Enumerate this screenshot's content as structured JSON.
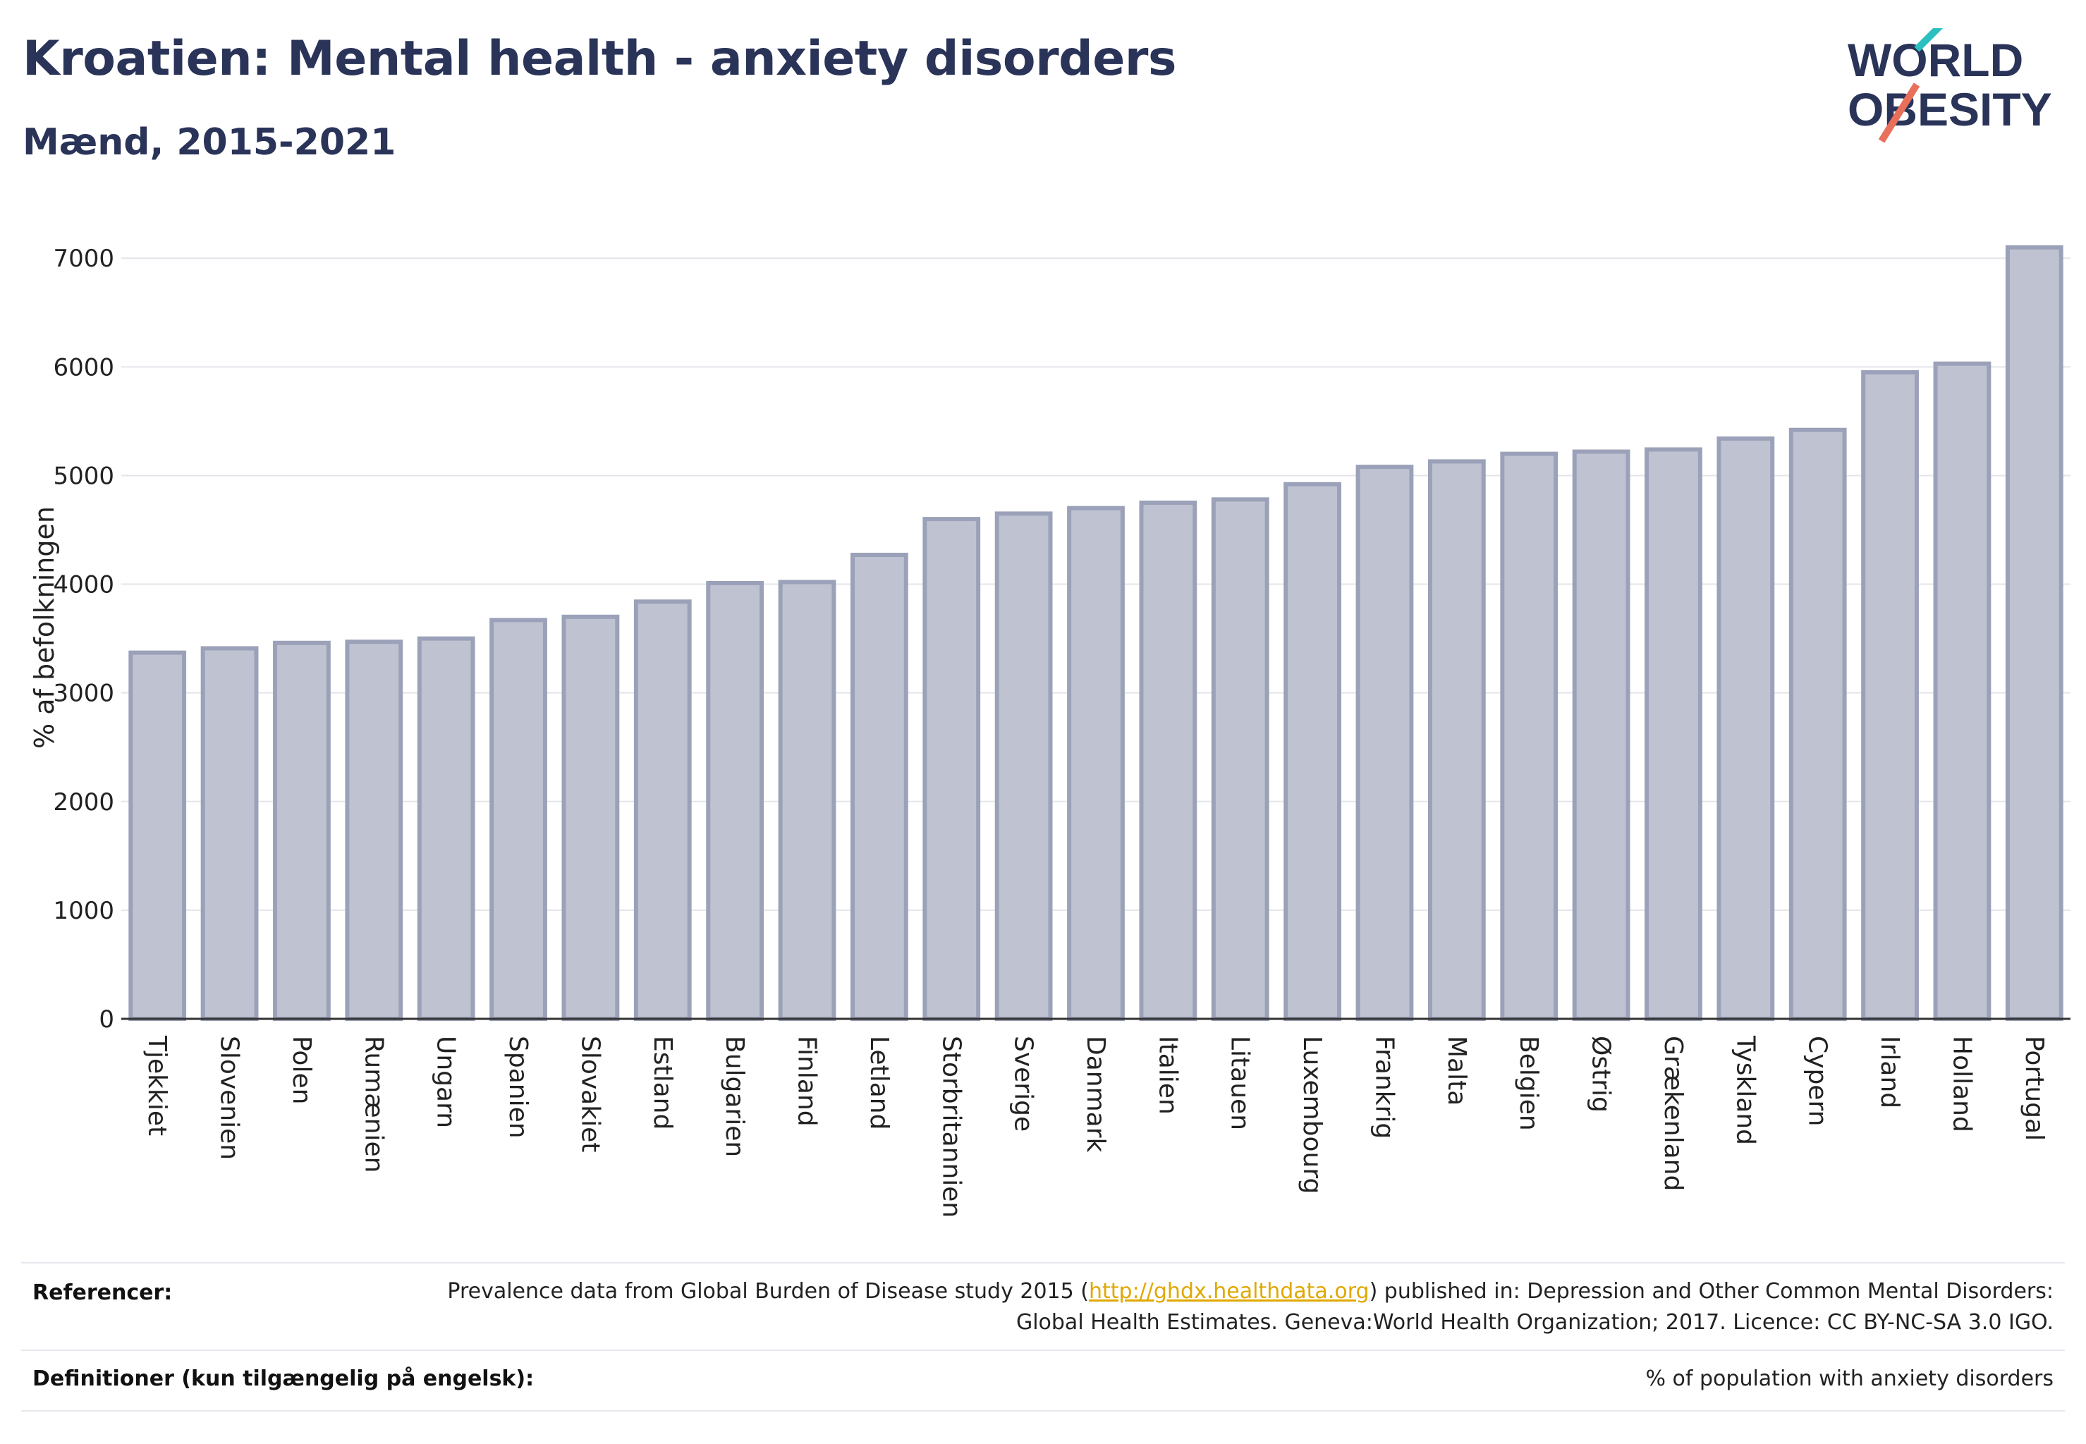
{
  "title": "Kroatien: Mental health - anxiety disorders",
  "subtitle": "Mænd, 2015-2021",
  "logo": {
    "line1": "WORLD",
    "line2": "OBESITY",
    "accent_colors": [
      "#2bbfbf",
      "#e8705a"
    ],
    "text_color": "#2a3358"
  },
  "colors": {
    "bar_fill": "#bfc3d1",
    "bar_stroke": "#9ba1b8",
    "grid": "#e3e5ea",
    "axis": "#333333"
  },
  "chart_data": {
    "type": "bar",
    "categories": [
      "Tjekkiet",
      "Slovenien",
      "Polen",
      "Rumænien",
      "Ungarn",
      "Spanien",
      "Slovakiet",
      "Estland",
      "Bulgarien",
      "Finland",
      "Letland",
      "Storbritannien",
      "Sverige",
      "Danmark",
      "Italien",
      "Litauen",
      "Luxembourg",
      "Frankrig",
      "Malta",
      "Belgien",
      "Østrig",
      "Grækenland",
      "Tyskland",
      "Cypern",
      "Irland",
      "Holland",
      "Portugal"
    ],
    "values": [
      3370,
      3410,
      3460,
      3470,
      3500,
      3670,
      3700,
      3840,
      4010,
      4020,
      4270,
      4600,
      4650,
      4700,
      4750,
      4780,
      4920,
      5080,
      5130,
      5200,
      5220,
      5240,
      5340,
      5420,
      5950,
      6030,
      7100
    ],
    "ylabel": "% af befolkningen",
    "xlabel": "",
    "ylim": [
      0,
      7300
    ],
    "yticks": [
      0,
      1000,
      2000,
      3000,
      4000,
      5000,
      6000,
      7000
    ],
    "grid": true
  },
  "footer": {
    "references_label": "Referencer:",
    "references_before": "Prevalence data from Global Burden of Disease study 2015 (",
    "references_link": "http://ghdx.healthdata.org",
    "references_after": ") published in: Depression and Other Common Mental Disorders: Global Health Estimates. Geneva:World Health Organization; 2017. Licence: CC BY-NC-SA 3.0 IGO.",
    "definitions_label": "Definitioner (kun tilgængelig på engelsk):",
    "definitions_text": "% of population with anxiety disorders"
  }
}
